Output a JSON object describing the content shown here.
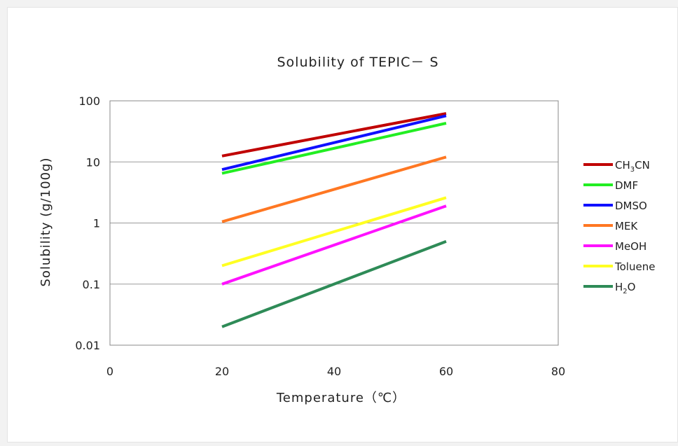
{
  "chart_data": {
    "type": "line",
    "title": "Solubility of TEPIC－ S",
    "xlabel": "Temperature（℃）",
    "ylabel": "Solubility (g/100g)",
    "x_ticks": [
      "0",
      "20",
      "40",
      "60",
      "80"
    ],
    "y_ticks": [
      "0.01",
      "0.1",
      "1",
      "10",
      "100"
    ],
    "xlim": [
      0,
      80
    ],
    "ylim": [
      0.01,
      100
    ],
    "y_scale": "log",
    "grid": "horizontal",
    "legend_position": "right",
    "x": [
      20,
      60
    ],
    "series": [
      {
        "name": "CH3CN",
        "name_parts": [
          "CH",
          "3",
          "CN"
        ],
        "color": "#c00000",
        "values": [
          12.5,
          62
        ]
      },
      {
        "name": "DMF",
        "name_parts": [
          "DMF",
          "",
          ""
        ],
        "color": "#22ee22",
        "values": [
          6.5,
          43
        ]
      },
      {
        "name": "DMSO",
        "name_parts": [
          "DMSO",
          "",
          ""
        ],
        "color": "#1010ff",
        "values": [
          7.5,
          57
        ]
      },
      {
        "name": "MEK",
        "name_parts": [
          "MEK",
          "",
          ""
        ],
        "color": "#ff7722",
        "values": [
          1.05,
          12
        ]
      },
      {
        "name": "MeOH",
        "name_parts": [
          "MeOH",
          "",
          ""
        ],
        "color": "#ff11ff",
        "values": [
          0.1,
          1.9
        ]
      },
      {
        "name": "Toluene",
        "name_parts": [
          "Toluene",
          "",
          ""
        ],
        "color": "#ffff22",
        "values": [
          0.2,
          2.6
        ]
      },
      {
        "name": "H2O",
        "name_parts": [
          "H",
          "2",
          "O"
        ],
        "color": "#2e8b57",
        "values": [
          0.02,
          0.5
        ]
      }
    ]
  }
}
